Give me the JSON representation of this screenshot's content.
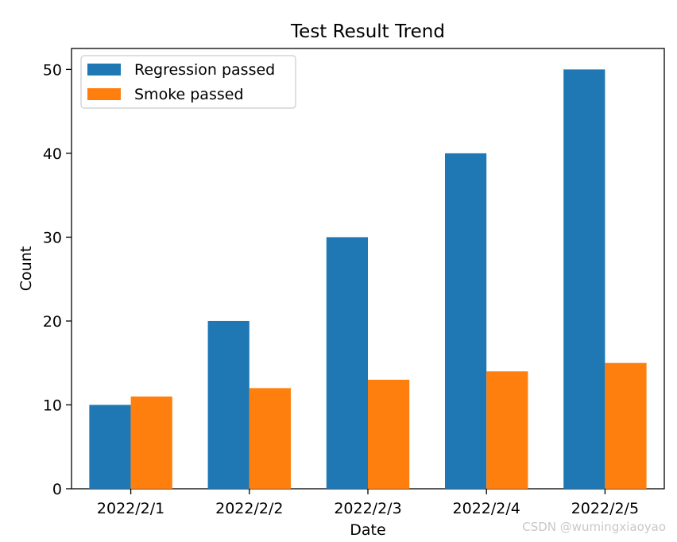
{
  "chart_data": {
    "type": "bar",
    "title": "Test Result Trend",
    "xlabel": "Date",
    "ylabel": "Count",
    "categories": [
      "2022/2/1",
      "2022/2/2",
      "2022/2/3",
      "2022/2/4",
      "2022/2/5"
    ],
    "series": [
      {
        "name": "Regression passed",
        "values": [
          10,
          20,
          30,
          40,
          50
        ],
        "color": "#1f77b4"
      },
      {
        "name": "Smoke passed",
        "values": [
          11,
          12,
          13,
          14,
          15
        ],
        "color": "#ff7f0e"
      }
    ],
    "ylim": [
      0,
      52.5
    ],
    "yticks": [
      0,
      10,
      20,
      30,
      40,
      50
    ],
    "grid": false,
    "legend": "top-left"
  },
  "watermark": "CSDN @wumingxiaoyao"
}
